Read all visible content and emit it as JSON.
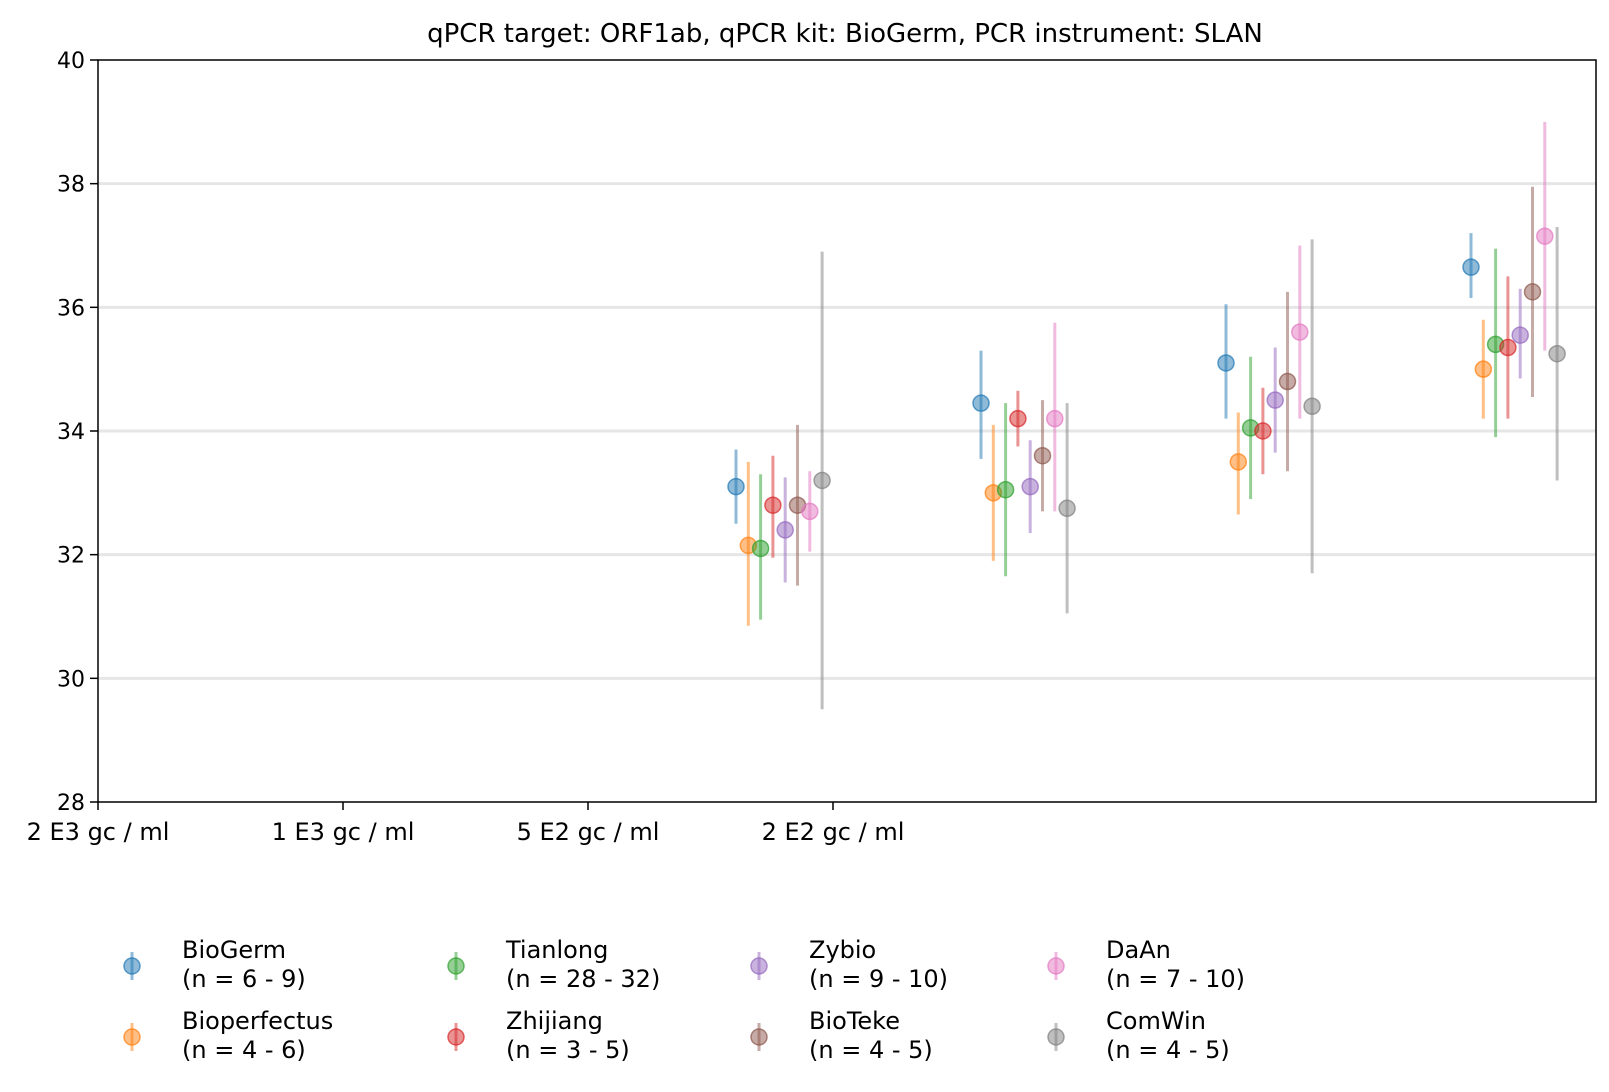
{
  "chart_data": {
    "type": "scatter",
    "title": "qPCR target: ORF1ab, qPCR kit: BioGerm, PCR instrument: SLAN",
    "xlabel": "",
    "ylabel": "",
    "ylim": [
      28,
      40
    ],
    "yticks": [
      "28",
      "30",
      "32",
      "34",
      "36",
      "38",
      "40"
    ],
    "xtick_labels": [
      "2 E3 gc / ml",
      "1 E3 gc / ml",
      "5 E2 gc / ml",
      "2 E2 gc / ml"
    ],
    "grid": "horizontal",
    "legend_position": "bottom",
    "groups": 4,
    "series": [
      {
        "name": "BioGerm",
        "legend_label": "BioGerm",
        "legend_n": "(n = 6 - 9)",
        "color": "#1f77b4",
        "points": [
          {
            "group": 0,
            "y": 33.1,
            "ylow": 32.5,
            "yhigh": 33.7
          },
          {
            "group": 1,
            "y": 34.45,
            "ylow": 33.55,
            "yhigh": 35.3
          },
          {
            "group": 2,
            "y": 35.1,
            "ylow": 34.2,
            "yhigh": 36.05
          },
          {
            "group": 3,
            "y": 36.65,
            "ylow": 36.15,
            "yhigh": 37.2
          }
        ]
      },
      {
        "name": "Bioperfectus",
        "legend_label": "Bioperfectus",
        "legend_n": "(n = 4 - 6)",
        "color": "#ff7f0e",
        "points": [
          {
            "group": 0,
            "y": 32.15,
            "ylow": 30.85,
            "yhigh": 33.5
          },
          {
            "group": 1,
            "y": 33.0,
            "ylow": 31.9,
            "yhigh": 34.1
          },
          {
            "group": 2,
            "y": 33.5,
            "ylow": 32.65,
            "yhigh": 34.3
          },
          {
            "group": 3,
            "y": 35.0,
            "ylow": 34.2,
            "yhigh": 35.8
          }
        ]
      },
      {
        "name": "Tianlong",
        "legend_label": "Tianlong",
        "legend_n": "(n = 28 - 32)",
        "color": "#2ca02c",
        "points": [
          {
            "group": 0,
            "y": 32.1,
            "ylow": 30.95,
            "yhigh": 33.3
          },
          {
            "group": 1,
            "y": 33.05,
            "ylow": 31.65,
            "yhigh": 34.45
          },
          {
            "group": 2,
            "y": 34.05,
            "ylow": 32.9,
            "yhigh": 35.2
          },
          {
            "group": 3,
            "y": 35.4,
            "ylow": 33.9,
            "yhigh": 36.95
          }
        ]
      },
      {
        "name": "Zhijiang",
        "legend_label": "Zhijiang",
        "legend_n": "(n = 3 - 5)",
        "color": "#d62728",
        "points": [
          {
            "group": 0,
            "y": 32.8,
            "ylow": 31.95,
            "yhigh": 33.6
          },
          {
            "group": 1,
            "y": 34.2,
            "ylow": 33.75,
            "yhigh": 34.65
          },
          {
            "group": 2,
            "y": 34.0,
            "ylow": 33.3,
            "yhigh": 34.7
          },
          {
            "group": 3,
            "y": 35.35,
            "ylow": 34.2,
            "yhigh": 36.5
          }
        ]
      },
      {
        "name": "Zybio",
        "legend_label": "Zybio",
        "legend_n": "(n = 9 - 10)",
        "color": "#9467bd",
        "points": [
          {
            "group": 0,
            "y": 32.4,
            "ylow": 31.55,
            "yhigh": 33.25
          },
          {
            "group": 1,
            "y": 33.1,
            "ylow": 32.35,
            "yhigh": 33.85
          },
          {
            "group": 2,
            "y": 34.5,
            "ylow": 33.65,
            "yhigh": 35.35
          },
          {
            "group": 3,
            "y": 35.55,
            "ylow": 34.85,
            "yhigh": 36.3
          }
        ]
      },
      {
        "name": "BioTeke",
        "legend_label": "BioTeke",
        "legend_n": "(n = 4 - 5)",
        "color": "#8c564b",
        "points": [
          {
            "group": 0,
            "y": 32.8,
            "ylow": 31.5,
            "yhigh": 34.1
          },
          {
            "group": 1,
            "y": 33.6,
            "ylow": 32.7,
            "yhigh": 34.5
          },
          {
            "group": 2,
            "y": 34.8,
            "ylow": 33.35,
            "yhigh": 36.25
          },
          {
            "group": 3,
            "y": 36.25,
            "ylow": 34.55,
            "yhigh": 37.95
          }
        ]
      },
      {
        "name": "DaAn",
        "legend_label": "DaAn",
        "legend_n": "(n = 7 - 10)",
        "color": "#e377c2",
        "points": [
          {
            "group": 0,
            "y": 32.7,
            "ylow": 32.05,
            "yhigh": 33.35
          },
          {
            "group": 1,
            "y": 34.2,
            "ylow": 32.7,
            "yhigh": 35.75
          },
          {
            "group": 2,
            "y": 35.6,
            "ylow": 34.2,
            "yhigh": 37.0
          },
          {
            "group": 3,
            "y": 37.15,
            "ylow": 35.3,
            "yhigh": 39.0
          }
        ]
      },
      {
        "name": "ComWin",
        "legend_label": "ComWin",
        "legend_n": "(n = 4 - 5)",
        "color": "#7f7f7f",
        "points": [
          {
            "group": 0,
            "y": 33.2,
            "ylow": 29.5,
            "yhigh": 36.9
          },
          {
            "group": 1,
            "y": 32.75,
            "ylow": 31.05,
            "yhigh": 34.45
          },
          {
            "group": 2,
            "y": 34.4,
            "ylow": 31.7,
            "yhigh": 37.1
          },
          {
            "group": 3,
            "y": 35.25,
            "ylow": 33.2,
            "yhigh": 37.3
          }
        ]
      }
    ]
  }
}
